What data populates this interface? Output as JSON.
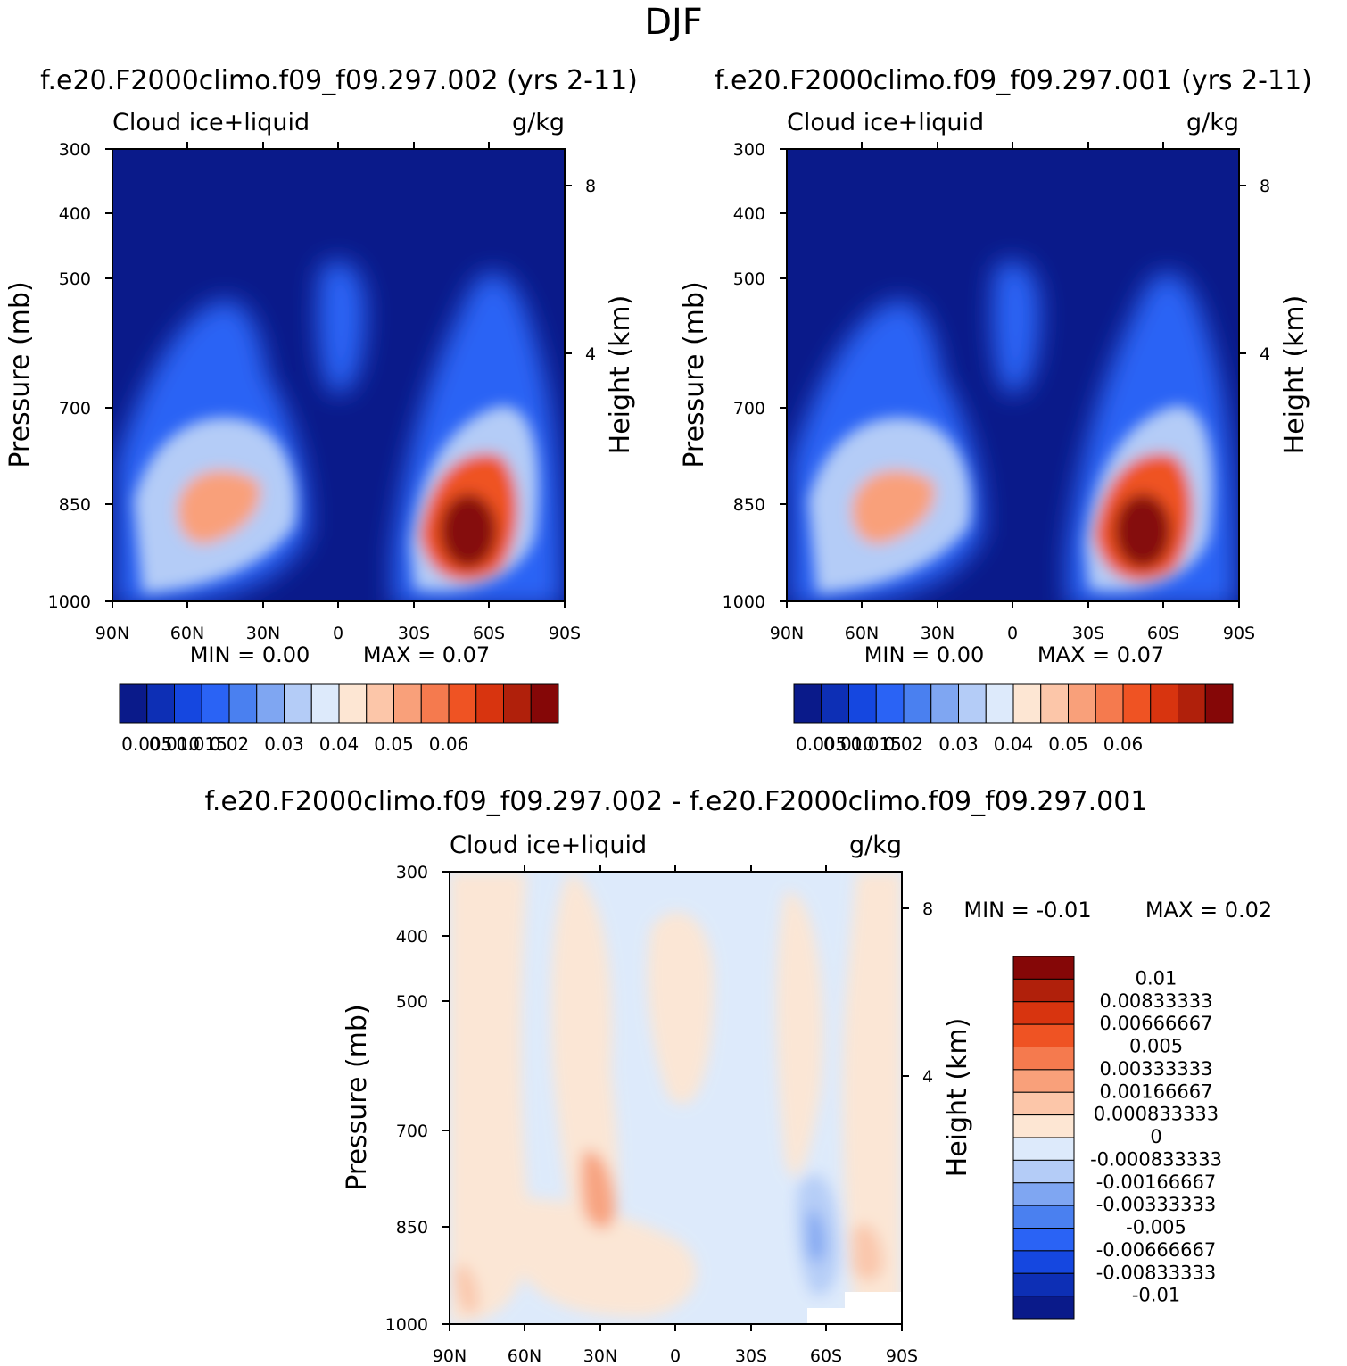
{
  "page_title": "DJF",
  "panels": [
    {
      "id": "case1",
      "title": "f.e20.F2000climo.f09_f09.297.002 (yrs 2-11)",
      "left_label": "Cloud ice+liquid",
      "right_label": "g/kg",
      "ylabel": "Pressure (mb)",
      "y2label": "Height (km)",
      "min_text": "MIN = 0.00",
      "max_text": "MAX = 0.07"
    },
    {
      "id": "case2",
      "title": "f.e20.F2000climo.f09_f09.297.001 (yrs 2-11)",
      "left_label": "Cloud ice+liquid",
      "right_label": "g/kg",
      "ylabel": "Pressure (mb)",
      "y2label": "Height (km)",
      "min_text": "MIN = 0.00",
      "max_text": "MAX = 0.07"
    },
    {
      "id": "diff",
      "title": "f.e20.F2000climo.f09_f09.297.002 - f.e20.F2000climo.f09_f09.297.001",
      "left_label": "Cloud ice+liquid",
      "right_label": "g/kg",
      "ylabel": "Pressure (mb)",
      "y2label": "Height (km)",
      "min_text": "MIN = -0.01",
      "max_text": "MAX = 0.02"
    }
  ],
  "colorbar_case": {
    "colors": [
      "#0a1a8a",
      "#0d2fb5",
      "#1547e0",
      "#2a63f5",
      "#4a80f0",
      "#7fa6f2",
      "#b4ccf7",
      "#ddeafb",
      "#fde6d3",
      "#fcc6a9",
      "#f9a07a",
      "#f57a4e",
      "#ef5323",
      "#d8340f",
      "#b0200b",
      "#850707"
    ],
    "tick_labels": [
      "0.005",
      "0.010",
      "0.015",
      "0.02",
      "0.03",
      "0.04",
      "0.05",
      "0.06"
    ]
  },
  "colorbar_diff": {
    "colors": [
      "#850707",
      "#b0200b",
      "#d8340f",
      "#ef5323",
      "#f57a4e",
      "#f9a07a",
      "#fcc6a9",
      "#fde6d3",
      "#ddeafb",
      "#b4ccf7",
      "#7fa6f2",
      "#4a80f0",
      "#2a63f5",
      "#1547e0",
      "#0d2fb5",
      "#0a1a8a"
    ],
    "tick_labels": [
      "0.01",
      "0.00833333",
      "0.00666667",
      "0.005",
      "0.00333333",
      "0.00166667",
      "0.000833333",
      "0",
      "-0.000833333",
      "-0.00166667",
      "-0.00333333",
      "-0.005",
      "-0.00666667",
      "-0.00833333",
      "-0.01"
    ]
  },
  "chart_data": [
    {
      "type": "heatmap",
      "title": "f.e20.F2000climo.f09_f09.297.002 (yrs 2-11)",
      "ylabel": "Pressure (mb)",
      "y2label": "Height (km)",
      "units": "g/kg",
      "x_ticks": [
        "90N",
        "60N",
        "30N",
        "0",
        "30S",
        "60S",
        "90S"
      ],
      "y_ticks": [
        300,
        400,
        500,
        700,
        850,
        1000
      ],
      "y2_ticks": [
        8,
        4
      ],
      "y_scale": "log",
      "min": 0.0,
      "max": 0.07,
      "levels": [
        0.005,
        0.01,
        0.015,
        0.02,
        0.025,
        0.03,
        0.035,
        0.04,
        0.045,
        0.05,
        0.055,
        0.06,
        0.065,
        0.07,
        0.075
      ]
    },
    {
      "type": "heatmap",
      "title": "f.e20.F2000climo.f09_f09.297.001 (yrs 2-11)",
      "ylabel": "Pressure (mb)",
      "y2label": "Height (km)",
      "units": "g/kg",
      "x_ticks": [
        "90N",
        "60N",
        "30N",
        "0",
        "30S",
        "60S",
        "90S"
      ],
      "y_ticks": [
        300,
        400,
        500,
        700,
        850,
        1000
      ],
      "y2_ticks": [
        8,
        4
      ],
      "y_scale": "log",
      "min": 0.0,
      "max": 0.07,
      "levels": [
        0.005,
        0.01,
        0.015,
        0.02,
        0.025,
        0.03,
        0.035,
        0.04,
        0.045,
        0.05,
        0.055,
        0.06,
        0.065,
        0.07,
        0.075
      ]
    },
    {
      "type": "heatmap",
      "title": "f.e20.F2000climo.f09_f09.297.002 - f.e20.F2000climo.f09_f09.297.001",
      "ylabel": "Pressure (mb)",
      "y2label": "Height (km)",
      "units": "g/kg",
      "x_ticks": [
        "90N",
        "60N",
        "30N",
        "0",
        "30S",
        "60S",
        "90S"
      ],
      "y_ticks": [
        300,
        400,
        500,
        700,
        850,
        1000
      ],
      "y2_ticks": [
        8,
        4
      ],
      "y_scale": "log",
      "min": -0.01,
      "max": 0.02,
      "levels": [
        -0.01,
        -0.00833333,
        -0.00666667,
        -0.005,
        -0.00333333,
        -0.00166667,
        -0.000833333,
        0,
        0.000833333,
        0.00166667,
        0.00333333,
        0.005,
        0.00666667,
        0.00833333,
        0.01
      ]
    }
  ]
}
